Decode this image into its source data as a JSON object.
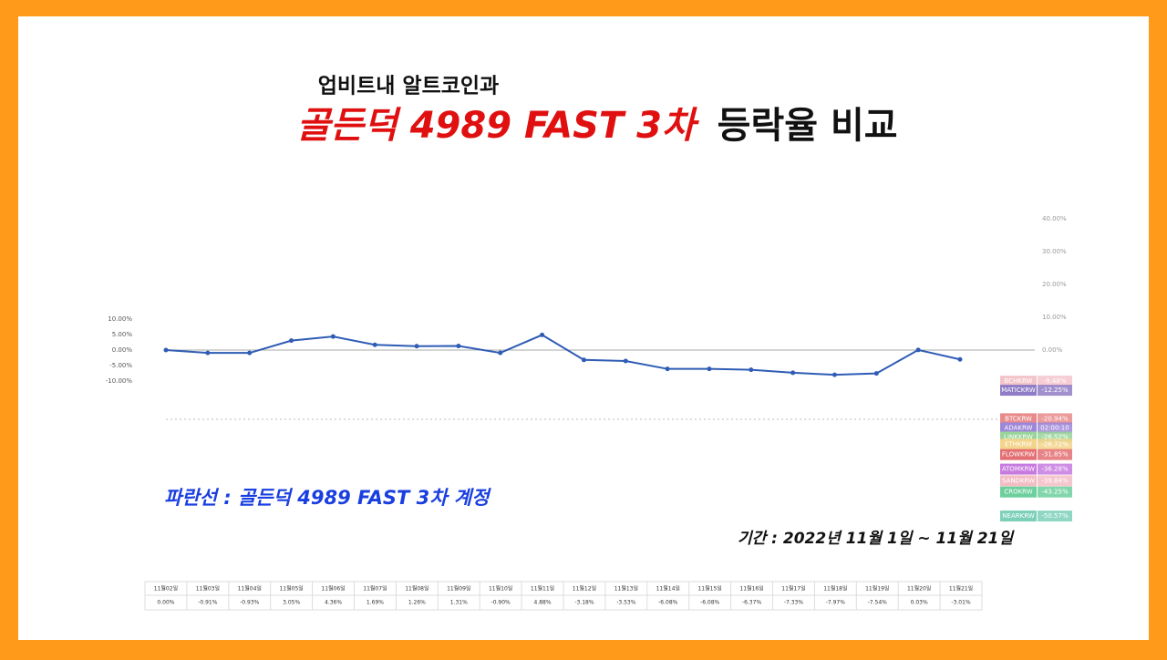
{
  "header": {
    "line1": "업비트내 알트코인과",
    "line2_red": "골든덕 4989 FAST 3차",
    "line2_black": "등락율 비교"
  },
  "period": "기간 : 2022년 11월 1일 ~ 11월 21일",
  "chart_data": {
    "type": "line",
    "categories": [
      "11월02일",
      "11월03일",
      "11월04일",
      "11월05일",
      "11월06일",
      "11월07일",
      "11월08일",
      "11월09일",
      "11월10일",
      "11월11일",
      "11월12일",
      "11월13일",
      "11월14일",
      "11월15일",
      "11월16일",
      "11월17일",
      "11월18일",
      "11월19일",
      "11월20일",
      "11월21일"
    ],
    "series": [
      {
        "name": "파란선 : 골든덕 4989 FAST 3차 계정",
        "color": "#2f5cb5",
        "values": [
          0,
          -0.91,
          -0.93,
          3.05,
          4.36,
          1.69,
          1.26,
          1.31,
          -0.9,
          4.88,
          -3.18,
          -3.53,
          -6.08,
          -6.08,
          -6.37,
          -7.33,
          -7.97,
          -7.54,
          0.03,
          -3.01
        ],
        "value_labels": [
          "0.00%",
          "-0.91%",
          "-0.93%",
          "3.05%",
          "4.36%",
          "1.69%",
          "1.26%",
          "1.31%",
          "-0.90%",
          "4.88%",
          "-3.18%",
          "-3.53%",
          "-6.08%",
          "-6.08%",
          "-6.37%",
          "-7.33%",
          "-7.97%",
          "-7.54%",
          "0.03%",
          "-3.01%"
        ]
      }
    ],
    "ylim": [
      -10,
      10
    ],
    "yticks": [
      {
        "value": 10,
        "label": "10.00%"
      },
      {
        "value": 5,
        "label": "5.00%"
      },
      {
        "value": 0,
        "label": "0.00%"
      },
      {
        "value": -5,
        "label": "-5.00%"
      },
      {
        "value": -10,
        "label": "-10.00%"
      }
    ],
    "y2lim": [
      0,
      40
    ],
    "y2ticks": [
      {
        "value": 40,
        "label": "40.00%"
      },
      {
        "value": 30,
        "label": "30.00%"
      },
      {
        "value": 20,
        "label": "20.00%"
      },
      {
        "value": 10,
        "label": "10.00%"
      },
      {
        "value": 0,
        "label": "0.00%"
      }
    ],
    "coins": [
      {
        "name": "BCHKRW",
        "value": -9.48,
        "value_label": "-9.48%",
        "color": "#f3c4ca"
      },
      {
        "name": "MATICKRW",
        "value": -12.25,
        "value_label": "-12.25%",
        "color": "#8f7cc6"
      },
      {
        "name": "BTCKRW",
        "value": -20.94,
        "value_label": "-20.94%",
        "color": "#e98a8a"
      },
      {
        "name": "ADAKRW",
        "value": null,
        "value_label": "02:00:10",
        "color": "#9d86d8"
      },
      {
        "name": "LINKKRW",
        "value": -26.52,
        "value_label": "-26.52%",
        "color": "#98d49a"
      },
      {
        "name": "ETHKRW",
        "value": -28.72,
        "value_label": "-28.72%",
        "color": "#f4d48a"
      },
      {
        "name": "FLOWKRW",
        "value": -31.85,
        "value_label": "-31.85%",
        "color": "#e36f72"
      },
      {
        "name": "ATOMKRW",
        "value": -36.28,
        "value_label": "-36.28%",
        "color": "#c77ae0"
      },
      {
        "name": "SANDKRW",
        "value": -39.84,
        "value_label": "-39.84%",
        "color": "#f3bcc4"
      },
      {
        "name": "CROKRW",
        "value": -43.25,
        "value_label": "-43.25%",
        "color": "#6ccf9c"
      },
      {
        "name": "NEARKRW",
        "value": -50.57,
        "value_label": "-50.57%",
        "color": "#7dd0b8"
      }
    ]
  }
}
